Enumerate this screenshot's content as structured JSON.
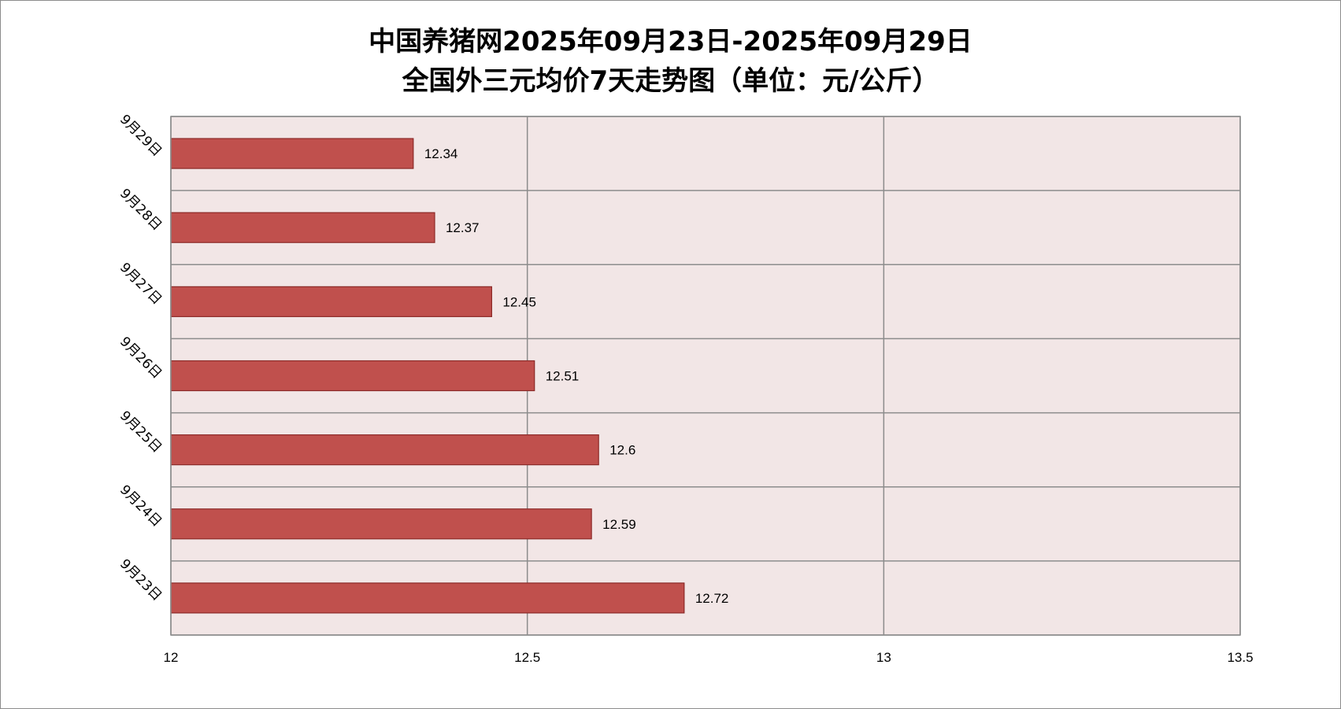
{
  "chart_data": {
    "type": "bar",
    "orientation": "horizontal",
    "title_line1": "中国养猪网2025年09月23日-2025年09月29日",
    "title_line2": "全国外三元均价7天走势图（单位：元/公斤）",
    "categories": [
      "9月29日",
      "9月28日",
      "9月27日",
      "9月26日",
      "9月25日",
      "9月24日",
      "9月23日"
    ],
    "values": [
      12.34,
      12.37,
      12.45,
      12.51,
      12.6,
      12.59,
      12.72
    ],
    "data_labels": [
      "12.34",
      "12.37",
      "12.45",
      "12.51",
      "12.6",
      "12.59",
      "12.72"
    ],
    "xlim": [
      12,
      13.5
    ],
    "x_ticks": [
      12,
      12.5,
      13,
      13.5
    ],
    "x_tick_labels": [
      "12",
      "12.5",
      "13",
      "13.5"
    ],
    "grid": true,
    "legend": "none",
    "colors": {
      "bar_fill": "#c0504d",
      "bar_stroke": "#8c2a28",
      "plot_background": "#f2e6e6",
      "grid": "#8c8c8c"
    }
  }
}
